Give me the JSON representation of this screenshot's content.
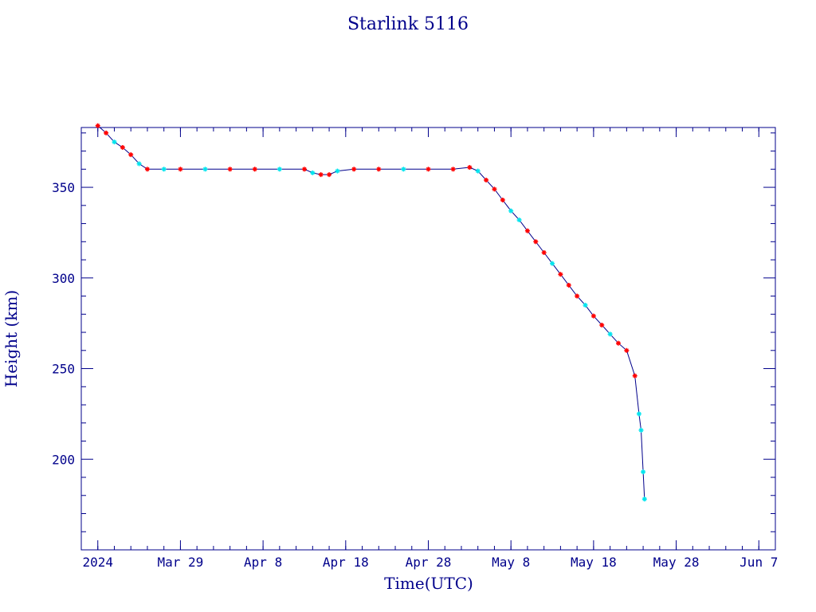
{
  "chart_data": {
    "type": "line",
    "title": "Starlink 5116",
    "xlabel": "Time(UTC)",
    "ylabel": "Height (km)",
    "xlim": [
      "2024-03-17",
      "2024-06-09"
    ],
    "ylim": [
      150,
      383
    ],
    "grid": false,
    "colors": {
      "axis": "#00008b",
      "line": "#00008b",
      "marker_a": "#ff0000",
      "marker_b": "#00e5ee"
    },
    "x_ticks": [
      {
        "date": "2024-03-19",
        "label": "2024"
      },
      {
        "date": "2024-03-29",
        "label": "Mar 29"
      },
      {
        "date": "2024-04-08",
        "label": "Apr  8"
      },
      {
        "date": "2024-04-18",
        "label": "Apr 18"
      },
      {
        "date": "2024-04-28",
        "label": "Apr 28"
      },
      {
        "date": "2024-05-08",
        "label": "May  8"
      },
      {
        "date": "2024-05-18",
        "label": "May 18"
      },
      {
        "date": "2024-05-28",
        "label": "May 28"
      },
      {
        "date": "2024-06-07",
        "label": "Jun  7"
      }
    ],
    "y_ticks": [
      200,
      250,
      300,
      350
    ],
    "series": [
      {
        "points": [
          {
            "t": "2024-03-19",
            "h": 384,
            "m": "a"
          },
          {
            "t": "2024-03-20",
            "h": 380,
            "m": "a"
          },
          {
            "t": "2024-03-21",
            "h": 375,
            "m": "b"
          },
          {
            "t": "2024-03-22",
            "h": 372,
            "m": "a"
          },
          {
            "t": "2024-03-23",
            "h": 368,
            "m": "a"
          },
          {
            "t": "2024-03-24",
            "h": 363,
            "m": "b"
          },
          {
            "t": "2024-03-25",
            "h": 360,
            "m": "a"
          },
          {
            "t": "2024-03-27",
            "h": 360,
            "m": "b"
          },
          {
            "t": "2024-03-29",
            "h": 360,
            "m": "a"
          },
          {
            "t": "2024-04-01",
            "h": 360,
            "m": "b"
          },
          {
            "t": "2024-04-04",
            "h": 360,
            "m": "a"
          },
          {
            "t": "2024-04-07",
            "h": 360,
            "m": "a"
          },
          {
            "t": "2024-04-10",
            "h": 360,
            "m": "b"
          },
          {
            "t": "2024-04-13",
            "h": 360,
            "m": "a"
          },
          {
            "t": "2024-04-14",
            "h": 358,
            "m": "b"
          },
          {
            "t": "2024-04-15",
            "h": 357,
            "m": "a"
          },
          {
            "t": "2024-04-16",
            "h": 357,
            "m": "a"
          },
          {
            "t": "2024-04-17",
            "h": 359,
            "m": "b"
          },
          {
            "t": "2024-04-19",
            "h": 360,
            "m": "a"
          },
          {
            "t": "2024-04-22",
            "h": 360,
            "m": "a"
          },
          {
            "t": "2024-04-25",
            "h": 360,
            "m": "b"
          },
          {
            "t": "2024-04-28",
            "h": 360,
            "m": "a"
          },
          {
            "t": "2024-05-01",
            "h": 360,
            "m": "a"
          },
          {
            "t": "2024-05-03",
            "h": 361,
            "m": "a"
          },
          {
            "t": "2024-05-04",
            "h": 359,
            "m": "b"
          },
          {
            "t": "2024-05-05",
            "h": 354,
            "m": "a"
          },
          {
            "t": "2024-05-06",
            "h": 349,
            "m": "a"
          },
          {
            "t": "2024-05-07",
            "h": 343,
            "m": "a"
          },
          {
            "t": "2024-05-08",
            "h": 337,
            "m": "b"
          },
          {
            "t": "2024-05-09",
            "h": 332,
            "m": "b"
          },
          {
            "t": "2024-05-10",
            "h": 326,
            "m": "a"
          },
          {
            "t": "2024-05-11",
            "h": 320,
            "m": "a"
          },
          {
            "t": "2024-05-12",
            "h": 314,
            "m": "a"
          },
          {
            "t": "2024-05-13",
            "h": 308,
            "m": "b"
          },
          {
            "t": "2024-05-14",
            "h": 302,
            "m": "a"
          },
          {
            "t": "2024-05-15",
            "h": 296,
            "m": "a"
          },
          {
            "t": "2024-05-16",
            "h": 290,
            "m": "a"
          },
          {
            "t": "2024-05-17",
            "h": 285,
            "m": "b"
          },
          {
            "t": "2024-05-18",
            "h": 279,
            "m": "a"
          },
          {
            "t": "2024-05-19",
            "h": 274,
            "m": "a"
          },
          {
            "t": "2024-05-20",
            "h": 269,
            "m": "b"
          },
          {
            "t": "2024-05-21",
            "h": 264,
            "m": "a"
          },
          {
            "t": "2024-05-22",
            "h": 260,
            "m": "a"
          },
          {
            "t": "2024-05-23",
            "h": 246,
            "m": "a"
          },
          {
            "t": "2024-05-23T12:00",
            "h": 225,
            "m": "b"
          },
          {
            "t": "2024-05-23T18:00",
            "h": 216,
            "m": "b"
          },
          {
            "t": "2024-05-24",
            "h": 193,
            "m": "b"
          },
          {
            "t": "2024-05-24T04:00",
            "h": 178,
            "m": "b"
          }
        ]
      }
    ]
  }
}
